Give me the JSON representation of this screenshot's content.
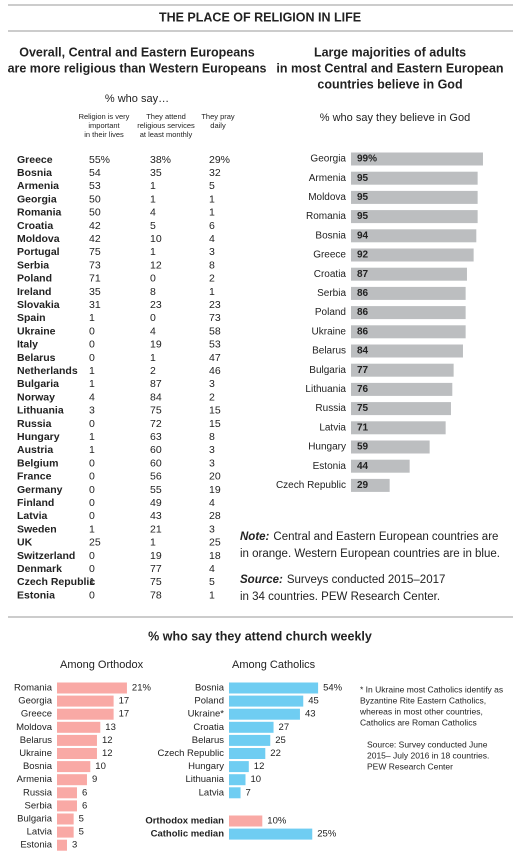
{
  "header": {
    "title": "THE PLACE OF RELIGION IN LIFE"
  },
  "table": {
    "title_lines": [
      "Overall, Central and Eastern Europeans",
      "are more religious than Western Europeans"
    ],
    "subtitle": "% who say…",
    "column_headers": [
      [
        "Religion is very",
        "important",
        "in their lives"
      ],
      [
        "They attend",
        "religious services",
        "at least monthly"
      ],
      [
        "They pray",
        "daily"
      ]
    ],
    "rows": [
      {
        "country": "Greece",
        "color": "#f7941d",
        "values": [
          55,
          38,
          29
        ],
        "value_labels": [
          "55%",
          "38%",
          "29%"
        ]
      },
      {
        "country": "Bosnia",
        "color": "#f7941d",
        "values": [
          54,
          35,
          32
        ]
      },
      {
        "country": "Armenia",
        "color": "#f7941d",
        "values": [
          53,
          1,
          5
        ]
      },
      {
        "country": "Georgia",
        "color": "#f7941d",
        "values": [
          50,
          1,
          1
        ]
      },
      {
        "country": "Romania",
        "color": "#f7941d",
        "values": [
          50,
          4,
          1
        ]
      },
      {
        "country": "Croatia",
        "color": "#f7941d",
        "values": [
          42,
          5,
          6
        ]
      },
      {
        "country": "Moldova",
        "color": "#f7941d",
        "values": [
          42,
          10,
          4
        ]
      },
      {
        "country": "Portugal",
        "color": "#29a8e0",
        "values": [
          75,
          1,
          3
        ]
      },
      {
        "country": "Serbia",
        "color": "#f7941d",
        "values": [
          73,
          12,
          8
        ]
      },
      {
        "country": "Poland",
        "color": "#f7941d",
        "values": [
          71,
          0,
          2
        ]
      },
      {
        "country": "Ireland",
        "color": "#29a8e0",
        "values": [
          35,
          8,
          1
        ]
      },
      {
        "country": "Slovakia",
        "color": "#f7941d",
        "values": [
          31,
          23,
          23
        ]
      },
      {
        "country": "Spain",
        "color": "#29a8e0",
        "values": [
          1,
          0,
          73
        ]
      },
      {
        "country": "Ukraine",
        "color": "#29a8e0",
        "values": [
          0,
          4,
          58
        ]
      },
      {
        "country": "Italy",
        "color": "#29a8e0",
        "values": [
          0,
          19,
          53
        ]
      },
      {
        "country": "Belarus",
        "color": "#f7941d",
        "values": [
          0,
          1,
          47
        ]
      },
      {
        "country": "Netherlands",
        "color": "#29a8e0",
        "values": [
          1,
          2,
          46
        ]
      },
      {
        "country": "Bulgaria",
        "color": "#f7941d",
        "values": [
          1,
          87,
          3
        ]
      },
      {
        "country": "Norway",
        "color": "#29a8e0",
        "values": [
          4,
          84,
          2
        ]
      },
      {
        "country": "Lithuania",
        "color": "#f7941d",
        "values": [
          3,
          75,
          15
        ]
      },
      {
        "country": "Russia",
        "color": "#f7941d",
        "values": [
          0,
          72,
          15
        ]
      },
      {
        "country": "Hungary",
        "color": "#f7941d",
        "values": [
          1,
          63,
          8
        ]
      },
      {
        "country": "Austria",
        "color": "#29a8e0",
        "values": [
          1,
          60,
          3
        ]
      },
      {
        "country": "Belgium",
        "color": "#29a8e0",
        "values": [
          0,
          60,
          3
        ]
      },
      {
        "country": "France",
        "color": "#29a8e0",
        "values": [
          0,
          56,
          20
        ]
      },
      {
        "country": "Germany",
        "color": "#29a8e0",
        "values": [
          0,
          55,
          19
        ]
      },
      {
        "country": "Finland",
        "color": "#29a8e0",
        "values": [
          0,
          49,
          4
        ]
      },
      {
        "country": "Latvia",
        "color": "#f7941d",
        "values": [
          0,
          43,
          28
        ]
      },
      {
        "country": "Sweden",
        "color": "#29a8e0",
        "values": [
          1,
          21,
          3
        ]
      },
      {
        "country": "UK",
        "color": "#29a8e0",
        "values": [
          25,
          1,
          25
        ]
      },
      {
        "country": "Switzerland",
        "color": "#29a8e0",
        "values": [
          0,
          19,
          18
        ]
      },
      {
        "country": "Denmark",
        "color": "#29a8e0",
        "values": [
          0,
          77,
          4
        ]
      },
      {
        "country": "Czech Republic",
        "color": "#f7941d",
        "values": [
          1,
          75,
          5
        ]
      },
      {
        "country": "Estonia",
        "color": "#f7941d",
        "values": [
          0,
          78,
          1
        ]
      }
    ]
  },
  "chart_data": [
    {
      "type": "bar",
      "orientation": "horizontal",
      "title_lines": [
        "Large majorities of adults",
        "in most Central and Eastern European",
        "countries believe in God"
      ],
      "subtitle": "% who say they believe in God",
      "color": "#bcbec0",
      "categories": [
        "Georgia",
        "Armenia",
        "Moldova",
        "Romania",
        "Bosnia",
        "Greece",
        "Croatia",
        "Serbia",
        "Poland",
        "Ukraine",
        "Belarus",
        "Bulgaria",
        "Lithuania",
        "Russia",
        "Latvia",
        "Hungary",
        "Estonia",
        "Czech Republic"
      ],
      "values": [
        99,
        95,
        95,
        95,
        94,
        92,
        87,
        86,
        86,
        86,
        84,
        77,
        76,
        75,
        71,
        59,
        44,
        29
      ],
      "value_labels": [
        "99%",
        "95",
        "95",
        "95",
        "94",
        "92",
        "87",
        "86",
        "86",
        "86",
        "84",
        "77",
        "76",
        "75",
        "71",
        "59",
        "44",
        "29"
      ]
    },
    {
      "type": "bar",
      "orientation": "horizontal",
      "title": "Among Orthodox",
      "color": "#f9a9a5",
      "categories": [
        "Romania",
        "Georgia",
        "Greece",
        "Moldova",
        "Belarus",
        "Ukraine",
        "Bosnia",
        "Armenia",
        "Russia",
        "Serbia",
        "Bulgaria",
        "Latvia",
        "Estonia"
      ],
      "values": [
        21,
        17,
        17,
        13,
        12,
        12,
        10,
        9,
        6,
        6,
        5,
        5,
        3
      ],
      "value_labels": [
        "21%",
        "17",
        "17",
        "13",
        "12",
        "12",
        "10",
        "9",
        "6",
        "6",
        "5",
        "5",
        "3"
      ]
    },
    {
      "type": "bar",
      "orientation": "horizontal",
      "title": "Among Catholics",
      "color": "#6fcdf2",
      "categories": [
        "Bosnia",
        "Poland",
        "Ukraine*",
        "Croatia",
        "Belarus",
        "Czech Republic",
        "Hungary",
        "Lithuania",
        "Latvia"
      ],
      "values": [
        54,
        45,
        43,
        27,
        25,
        22,
        12,
        10,
        7
      ],
      "value_labels": [
        "54%",
        "45",
        "43",
        "27",
        "25",
        "22",
        "12",
        "10",
        "7"
      ]
    }
  ],
  "note": {
    "label": "Note:",
    "lines": [
      "Central and Eastern European countries are",
      "in orange. Western European countries are in blue."
    ]
  },
  "source": {
    "label": "Source:",
    "lines": [
      "Surveys conducted 2015–2017",
      "in 34 countries. PEW Research Center."
    ]
  },
  "church": {
    "title": "% who say they attend church weekly"
  },
  "medians": [
    {
      "name": "Orthodox median",
      "color": "#f9a9a5",
      "value": 10,
      "value_label": "10%"
    },
    {
      "name": "Catholic median",
      "color": "#6fcdf2",
      "value": 25,
      "value_label": "25%"
    }
  ],
  "footnote": {
    "lines": [
      "* In Ukraine most Catholics identify as",
      "Byzantine Rite Eastern Catholics,",
      "whereas in most other countries,",
      "Catholics are Roman Catholics"
    ]
  },
  "footnote_source": {
    "lines": [
      "Source: Survey conducted June",
      "2015– July 2016 in 18 countries.",
      "PEW Research Center"
    ]
  }
}
